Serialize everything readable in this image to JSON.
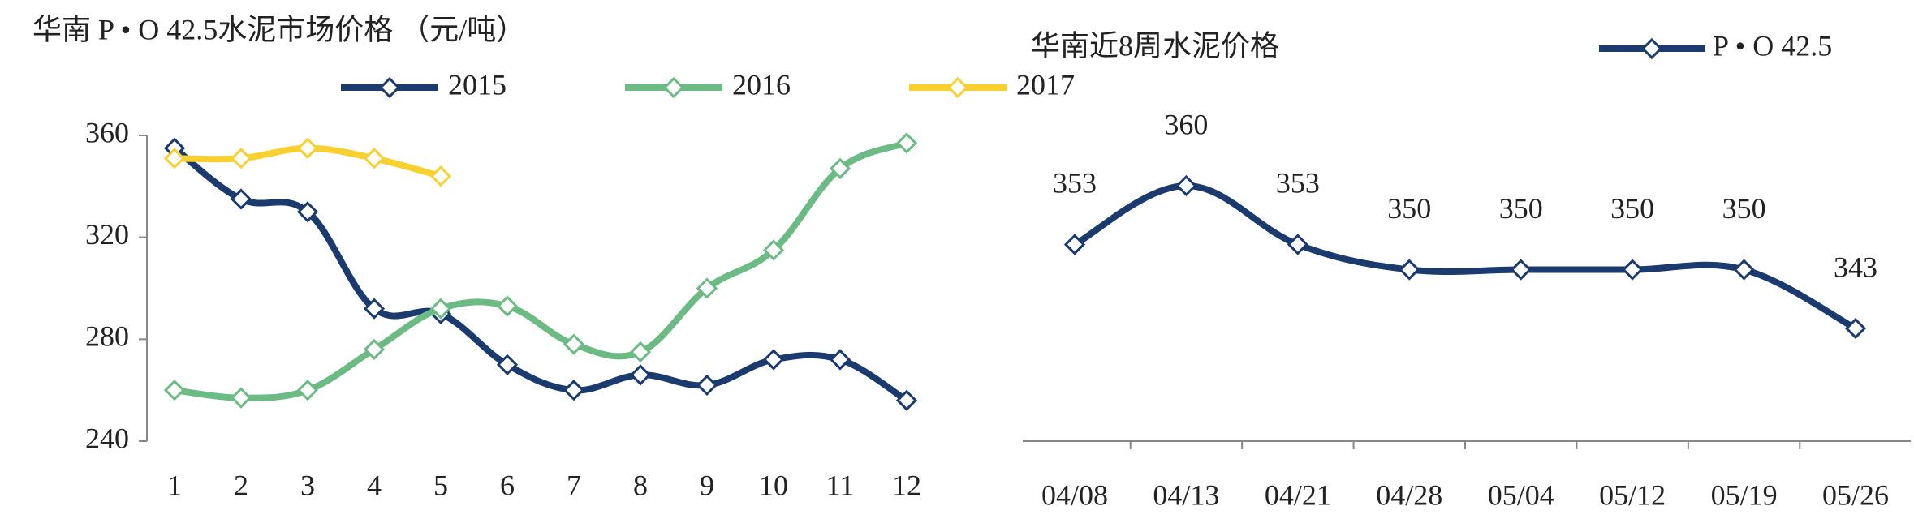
{
  "chart_data": [
    {
      "type": "line",
      "title": "华南 P • O 42.5水泥市场价格 （元/吨）",
      "categories": [
        "1",
        "2",
        "3",
        "4",
        "5",
        "6",
        "7",
        "8",
        "9",
        "10",
        "11",
        "12"
      ],
      "series": [
        {
          "name": "2015",
          "color": "#1b3b6f",
          "values": [
            355,
            335,
            330,
            292,
            290,
            270,
            260,
            266,
            262,
            272,
            272,
            256
          ]
        },
        {
          "name": "2016",
          "color": "#6dbb84",
          "values": [
            260,
            257,
            260,
            276,
            292,
            293,
            278,
            275,
            300,
            315,
            347,
            357
          ]
        },
        {
          "name": "2017",
          "color": "#f8d030",
          "values": [
            351,
            351,
            355,
            351,
            344,
            null,
            null,
            null,
            null,
            null,
            null,
            null
          ]
        }
      ],
      "ylim": [
        240,
        360
      ],
      "yticks": [
        240,
        280,
        320,
        360
      ]
    },
    {
      "type": "line",
      "title": "华南近8周水泥价格",
      "categories": [
        "04/08",
        "04/13",
        "04/21",
        "04/28",
        "05/04",
        "05/12",
        "05/19",
        "05/26"
      ],
      "series": [
        {
          "name": "P • O 42.5",
          "color": "#1b3b6f",
          "values": [
            353,
            360,
            353,
            350,
            350,
            350,
            350,
            343
          ]
        }
      ]
    }
  ]
}
